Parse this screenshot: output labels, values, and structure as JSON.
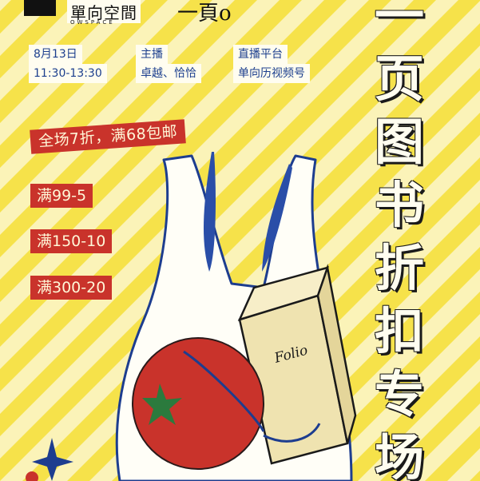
{
  "brand": {
    "name": "單向空間",
    "sub": "OWSPACE",
    "second_logo": "一頁о"
  },
  "info": {
    "date": "8月13日",
    "time": "11:30-13:30",
    "host_label": "主播",
    "hosts": "卓越、恰恰",
    "platform_label": "直播平台",
    "platform": "单向历视频号"
  },
  "promo": {
    "banner": "全场7折，满68包邮",
    "tiers": [
      "满99-5",
      "满150-10",
      "满300-20"
    ]
  },
  "title_chars": [
    "一",
    "页",
    "图",
    "书",
    "折",
    "扣",
    "专",
    "场"
  ],
  "book_label": "Folio",
  "colors": {
    "stripe": "#f6e24a",
    "bg": "#fbf3b8",
    "red": "#c9332b",
    "blue": "#1c3f8e"
  }
}
